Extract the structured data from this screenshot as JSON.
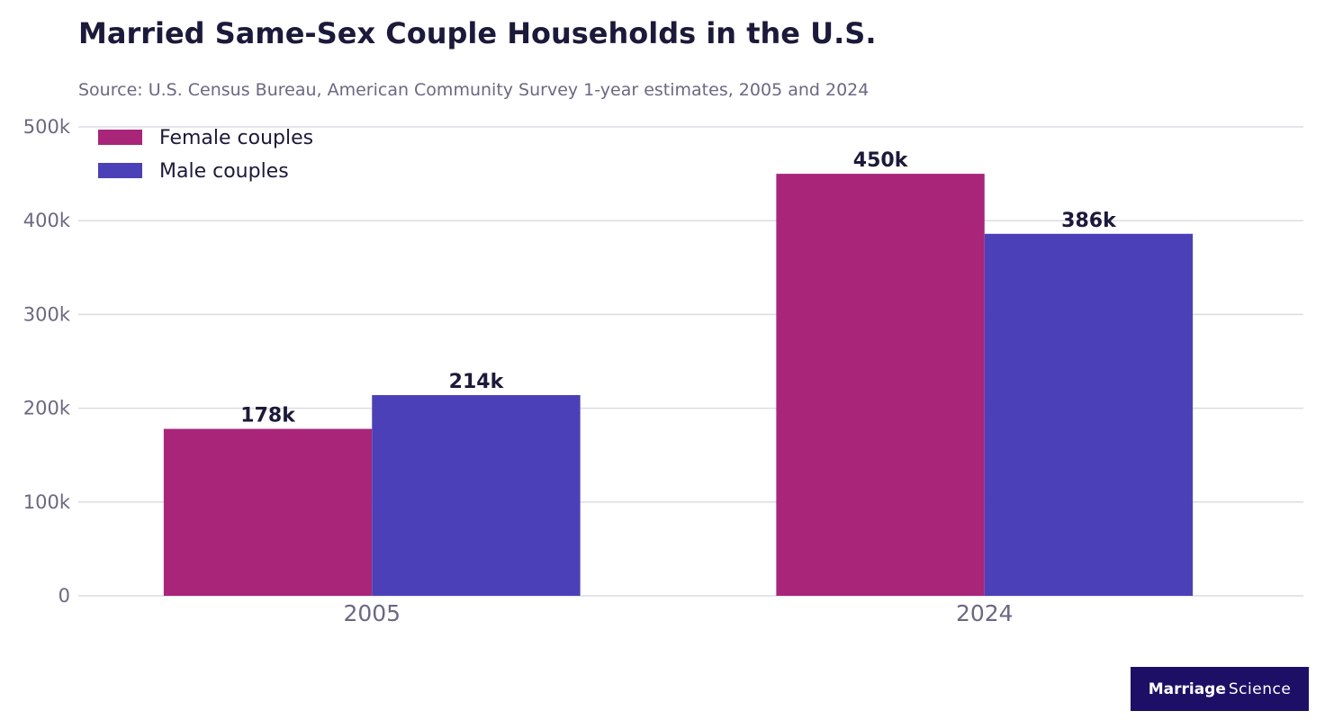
{
  "title": "Married Same-Sex Couple Households in the U.S.",
  "subtitle": "Source: U.S. Census Bureau, American Community Survey 1-year estimates, 2005 and 2024",
  "brand": {
    "part1": "Marriage",
    "part2": "Science"
  },
  "colors": {
    "female": "#a8257a",
    "male": "#4b40b8",
    "grid": "#dcdbe6",
    "tick": "#6b6882",
    "label": "#1c1a3a"
  },
  "chart_data": {
    "type": "bar",
    "categories": [
      "2005",
      "2024"
    ],
    "series": [
      {
        "name": "Female couples",
        "values": [
          178000,
          450000
        ],
        "labels": [
          "178k",
          "450k"
        ]
      },
      {
        "name": "Male couples",
        "values": [
          214000,
          386000
        ],
        "labels": [
          "214k",
          "386k"
        ]
      }
    ],
    "ylim": [
      0,
      500000
    ],
    "yticks": [
      0,
      100000,
      200000,
      300000,
      400000,
      500000
    ],
    "ytick_labels": [
      "0",
      "100k",
      "200k",
      "300k",
      "400k",
      "500k"
    ],
    "grid": true,
    "legend_position": "top-left"
  }
}
